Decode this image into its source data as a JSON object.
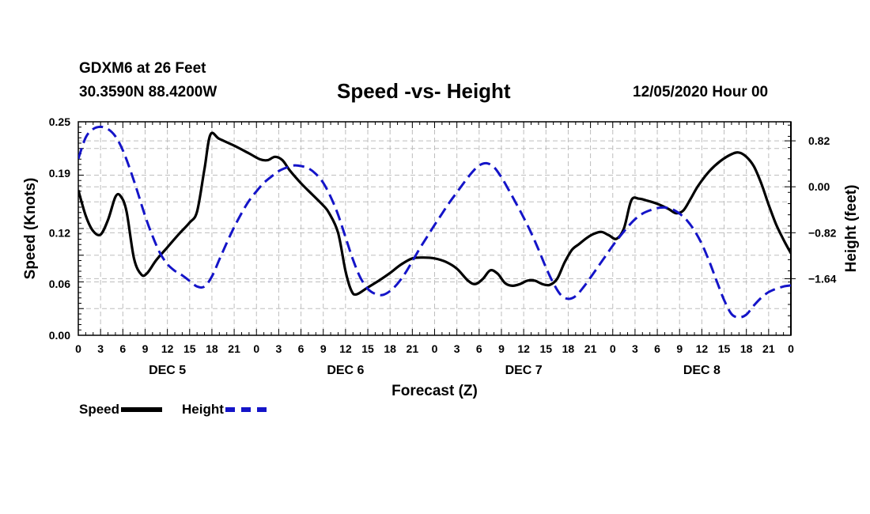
{
  "header": {
    "station": "GDXM6 at 26 Feet",
    "coords": "30.3590N 88.4200W",
    "title": "Speed -vs- Height",
    "date": "12/05/2020 Hour 00"
  },
  "legend": {
    "speed_label": "Speed",
    "height_label": "Height"
  },
  "colors": {
    "speed": "#000000",
    "height": "#1414c8",
    "grid": "#bdbdbd"
  },
  "chart_data": {
    "type": "line",
    "title": "Speed -vs- Height",
    "xlabel": "Forecast (Z)",
    "ylabel_left": "Speed (Knots)",
    "ylabel_right": "Height (feet)",
    "x_range_hours": [
      0,
      96
    ],
    "x_tick_step_hours": 3,
    "x_tick_labels": [
      "0",
      "3",
      "6",
      "9",
      "12",
      "15",
      "18",
      "21",
      "0",
      "3",
      "6",
      "9",
      "12",
      "15",
      "18",
      "21",
      "0",
      "3",
      "6",
      "9",
      "12",
      "15",
      "18",
      "21",
      "0",
      "3",
      "6",
      "9",
      "12",
      "15",
      "18",
      "21",
      "0"
    ],
    "day_labels": [
      {
        "label": "DEC 5",
        "hour": 12
      },
      {
        "label": "DEC 6",
        "hour": 36
      },
      {
        "label": "DEC 7",
        "hour": 60
      },
      {
        "label": "DEC 8",
        "hour": 84
      }
    ],
    "left_axis": {
      "range": [
        0,
        0.25
      ],
      "ticks": [
        0.0,
        0.06,
        0.12,
        0.19,
        0.25
      ],
      "tick_labels": [
        "0.00",
        "0.06",
        "0.12",
        "0.19",
        "0.25"
      ]
    },
    "right_axis": {
      "range": [
        -2.65,
        1.16
      ],
      "ticks": [
        0.82,
        0.0,
        -0.82,
        -1.64
      ],
      "tick_labels": [
        "0.82",
        "0.00",
        "−0.82",
        "−1.64"
      ]
    },
    "grid": true,
    "legend_position": "bottom-left",
    "series": [
      {
        "name": "Speed",
        "axis": "left",
        "style": "solid",
        "points": [
          [
            0,
            0.17
          ],
          [
            1,
            0.14
          ],
          [
            2,
            0.122
          ],
          [
            3,
            0.118
          ],
          [
            4,
            0.135
          ],
          [
            5,
            0.162
          ],
          [
            5.7,
            0.163
          ],
          [
            6.5,
            0.145
          ],
          [
            7.5,
            0.09
          ],
          [
            8.5,
            0.071
          ],
          [
            9.3,
            0.073
          ],
          [
            10.5,
            0.088
          ],
          [
            12,
            0.103
          ],
          [
            13.5,
            0.118
          ],
          [
            15,
            0.132
          ],
          [
            16,
            0.145
          ],
          [
            17,
            0.195
          ],
          [
            17.8,
            0.235
          ],
          [
            19,
            0.23
          ],
          [
            21,
            0.222
          ],
          [
            23,
            0.213
          ],
          [
            24.5,
            0.206
          ],
          [
            25.5,
            0.205
          ],
          [
            26.5,
            0.209
          ],
          [
            27.5,
            0.205
          ],
          [
            28.5,
            0.193
          ],
          [
            30,
            0.178
          ],
          [
            31.5,
            0.165
          ],
          [
            33,
            0.152
          ],
          [
            33.8,
            0.143
          ],
          [
            35,
            0.12
          ],
          [
            36,
            0.075
          ],
          [
            36.8,
            0.052
          ],
          [
            37.5,
            0.048
          ],
          [
            39,
            0.056
          ],
          [
            40.5,
            0.064
          ],
          [
            42,
            0.073
          ],
          [
            43.5,
            0.083
          ],
          [
            45,
            0.09
          ],
          [
            46.5,
            0.091
          ],
          [
            48,
            0.09
          ],
          [
            49.5,
            0.086
          ],
          [
            51,
            0.078
          ],
          [
            52.5,
            0.064
          ],
          [
            53.5,
            0.06
          ],
          [
            54.5,
            0.066
          ],
          [
            55.5,
            0.076
          ],
          [
            56.5,
            0.072
          ],
          [
            57.5,
            0.061
          ],
          [
            58.5,
            0.058
          ],
          [
            59.5,
            0.06
          ],
          [
            60.5,
            0.064
          ],
          [
            61.5,
            0.064
          ],
          [
            62.5,
            0.06
          ],
          [
            63.5,
            0.059
          ],
          [
            64.5,
            0.066
          ],
          [
            65.5,
            0.085
          ],
          [
            66.5,
            0.1
          ],
          [
            67.5,
            0.107
          ],
          [
            68.5,
            0.114
          ],
          [
            69.5,
            0.119
          ],
          [
            70.5,
            0.121
          ],
          [
            71.5,
            0.117
          ],
          [
            72.5,
            0.113
          ],
          [
            73.5,
            0.125
          ],
          [
            74.5,
            0.158
          ],
          [
            75.5,
            0.16
          ],
          [
            76.5,
            0.158
          ],
          [
            78,
            0.154
          ],
          [
            79.5,
            0.148
          ],
          [
            80.5,
            0.143
          ],
          [
            81.5,
            0.146
          ],
          [
            82.5,
            0.16
          ],
          [
            83.5,
            0.175
          ],
          [
            85,
            0.192
          ],
          [
            86.5,
            0.204
          ],
          [
            88,
            0.212
          ],
          [
            89,
            0.214
          ],
          [
            90,
            0.209
          ],
          [
            91,
            0.198
          ],
          [
            92,
            0.178
          ],
          [
            93,
            0.153
          ],
          [
            94,
            0.13
          ],
          [
            95,
            0.112
          ],
          [
            96,
            0.096
          ]
        ]
      },
      {
        "name": "Height",
        "axis": "right",
        "style": "dashed",
        "points": [
          [
            0,
            0.5
          ],
          [
            1,
            0.88
          ],
          [
            2,
            1.03
          ],
          [
            3,
            1.07
          ],
          [
            4,
            1.03
          ],
          [
            5,
            0.9
          ],
          [
            6,
            0.65
          ],
          [
            7,
            0.3
          ],
          [
            8,
            -0.1
          ],
          [
            9,
            -0.52
          ],
          [
            10,
            -0.88
          ],
          [
            11,
            -1.18
          ],
          [
            12,
            -1.38
          ],
          [
            13,
            -1.5
          ],
          [
            14,
            -1.58
          ],
          [
            15,
            -1.68
          ],
          [
            16,
            -1.78
          ],
          [
            17,
            -1.78
          ],
          [
            18,
            -1.6
          ],
          [
            19,
            -1.3
          ],
          [
            20,
            -1.0
          ],
          [
            21,
            -0.72
          ],
          [
            22,
            -0.47
          ],
          [
            23,
            -0.25
          ],
          [
            24,
            -0.08
          ],
          [
            25,
            0.07
          ],
          [
            26,
            0.18
          ],
          [
            27,
            0.28
          ],
          [
            28,
            0.34
          ],
          [
            29,
            0.38
          ],
          [
            30,
            0.37
          ],
          [
            31,
            0.33
          ],
          [
            32,
            0.23
          ],
          [
            33,
            0.07
          ],
          [
            34,
            -0.18
          ],
          [
            35,
            -0.5
          ],
          [
            36,
            -0.9
          ],
          [
            37,
            -1.3
          ],
          [
            38,
            -1.62
          ],
          [
            39,
            -1.82
          ],
          [
            40,
            -1.91
          ],
          [
            41,
            -1.93
          ],
          [
            42,
            -1.86
          ],
          [
            43,
            -1.73
          ],
          [
            44,
            -1.55
          ],
          [
            45,
            -1.33
          ],
          [
            46,
            -1.1
          ],
          [
            47,
            -0.89
          ],
          [
            48,
            -0.68
          ],
          [
            49,
            -0.48
          ],
          [
            50,
            -0.28
          ],
          [
            51,
            -0.1
          ],
          [
            52,
            0.08
          ],
          [
            53,
            0.25
          ],
          [
            54,
            0.38
          ],
          [
            55,
            0.42
          ],
          [
            56,
            0.35
          ],
          [
            57,
            0.17
          ],
          [
            58,
            -0.06
          ],
          [
            59,
            -0.3
          ],
          [
            60,
            -0.55
          ],
          [
            61,
            -0.82
          ],
          [
            62,
            -1.12
          ],
          [
            63,
            -1.44
          ],
          [
            64,
            -1.72
          ],
          [
            65,
            -1.93
          ],
          [
            66,
            -2.0
          ],
          [
            67,
            -1.95
          ],
          [
            68,
            -1.8
          ],
          [
            69,
            -1.62
          ],
          [
            70,
            -1.43
          ],
          [
            71,
            -1.24
          ],
          [
            72,
            -1.05
          ],
          [
            73,
            -0.88
          ],
          [
            74,
            -0.72
          ],
          [
            75,
            -0.58
          ],
          [
            76,
            -0.48
          ],
          [
            77,
            -0.42
          ],
          [
            78,
            -0.38
          ],
          [
            79,
            -0.37
          ],
          [
            80,
            -0.4
          ],
          [
            81,
            -0.48
          ],
          [
            82,
            -0.6
          ],
          [
            83,
            -0.78
          ],
          [
            84,
            -1.02
          ],
          [
            85,
            -1.33
          ],
          [
            86,
            -1.68
          ],
          [
            87,
            -2.02
          ],
          [
            88,
            -2.27
          ],
          [
            89,
            -2.33
          ],
          [
            90,
            -2.28
          ],
          [
            91,
            -2.12
          ],
          [
            92,
            -1.98
          ],
          [
            93,
            -1.88
          ],
          [
            94,
            -1.82
          ],
          [
            95,
            -1.78
          ],
          [
            96,
            -1.76
          ]
        ]
      }
    ]
  }
}
